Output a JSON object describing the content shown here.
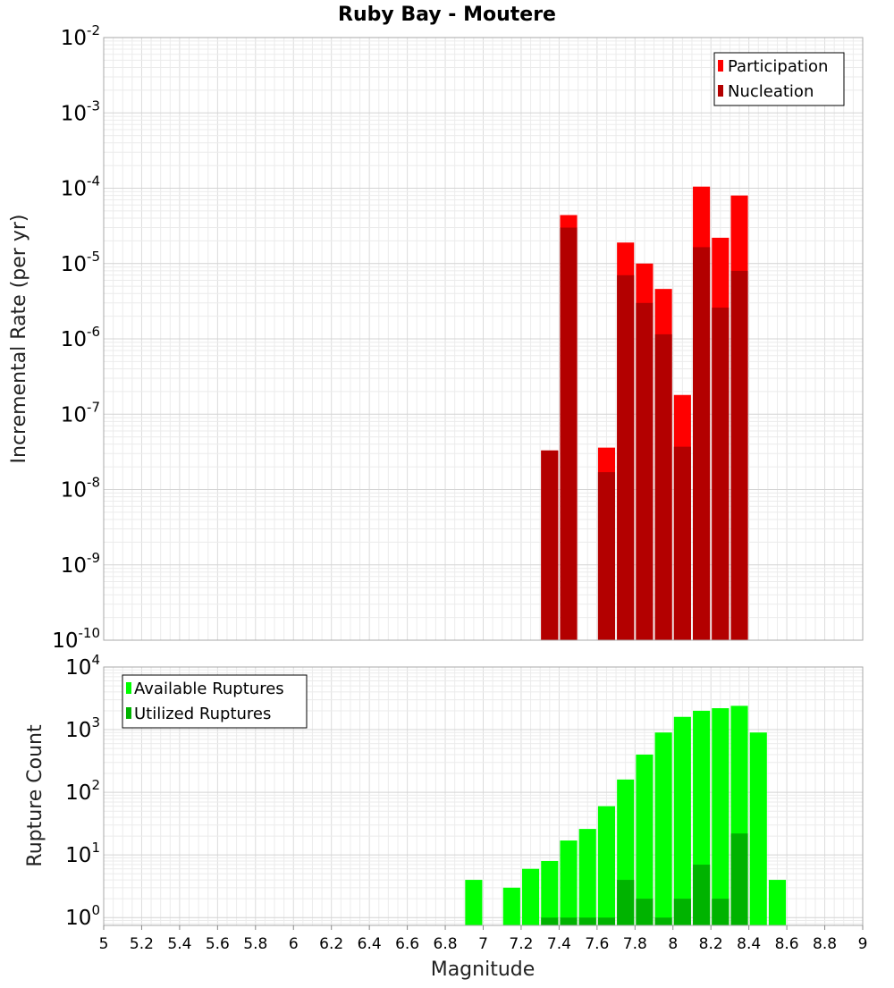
{
  "chart_data": [
    {
      "type": "bar",
      "title": "Ruby Bay - Moutere",
      "ylabel": "Incremental Rate (per yr)",
      "yscale": "log",
      "ylim": [
        1e-10,
        0.01
      ],
      "xlim": [
        5,
        9
      ],
      "grid": true,
      "legend_position": "top-right",
      "bar_width": 0.09,
      "series": [
        {
          "name": "Participation",
          "color": "#ff0000",
          "x": [
            7.35,
            7.45,
            7.65,
            7.75,
            7.85,
            7.95,
            8.05,
            8.15,
            8.25,
            8.35
          ],
          "values": [
            3.3e-08,
            4.4e-05,
            3.6e-08,
            1.9e-05,
            1e-05,
            4.6e-06,
            1.8e-07,
            0.000105,
            2.2e-05,
            8e-05
          ]
        },
        {
          "name": "Nucleation",
          "color": "#b30000",
          "x": [
            7.35,
            7.45,
            7.65,
            7.75,
            7.85,
            7.95,
            8.05,
            8.15,
            8.25,
            8.35
          ],
          "values": [
            3.3e-08,
            3e-05,
            1.7e-08,
            7e-06,
            3e-06,
            1.15e-06,
            3.7e-08,
            1.65e-05,
            2.6e-06,
            8e-06
          ]
        }
      ]
    },
    {
      "type": "bar",
      "xlabel": "Magnitude",
      "ylabel": "Rupture Count",
      "yscale": "log",
      "ylim": [
        0.75,
        10000
      ],
      "xlim": [
        5,
        9
      ],
      "xticks": [
        "5",
        "5.2",
        "5.4",
        "5.6",
        "5.8",
        "6",
        "6.2",
        "6.4",
        "6.6",
        "6.8",
        "7",
        "7.2",
        "7.4",
        "7.6",
        "7.8",
        "8",
        "8.2",
        "8.4",
        "8.6",
        "8.8",
        "9"
      ],
      "grid": true,
      "legend_position": "top-left",
      "bar_width": 0.09,
      "series": [
        {
          "name": "Available Ruptures",
          "color": "#00ff00",
          "x": [
            6.95,
            7.15,
            7.25,
            7.35,
            7.45,
            7.55,
            7.65,
            7.75,
            7.85,
            7.95,
            8.05,
            8.15,
            8.25,
            8.35,
            8.45,
            8.55
          ],
          "values": [
            4,
            3,
            6,
            8,
            17,
            26,
            60,
            160,
            400,
            900,
            1600,
            2000,
            2200,
            2400,
            900,
            4
          ]
        },
        {
          "name": "Utilized Ruptures",
          "color": "#00b300",
          "x": [
            7.35,
            7.45,
            7.55,
            7.65,
            7.75,
            7.85,
            7.95,
            8.05,
            8.15,
            8.25,
            8.35
          ],
          "values": [
            1,
            1,
            1,
            1,
            4,
            2,
            1,
            2,
            7,
            2,
            22
          ]
        }
      ]
    }
  ]
}
